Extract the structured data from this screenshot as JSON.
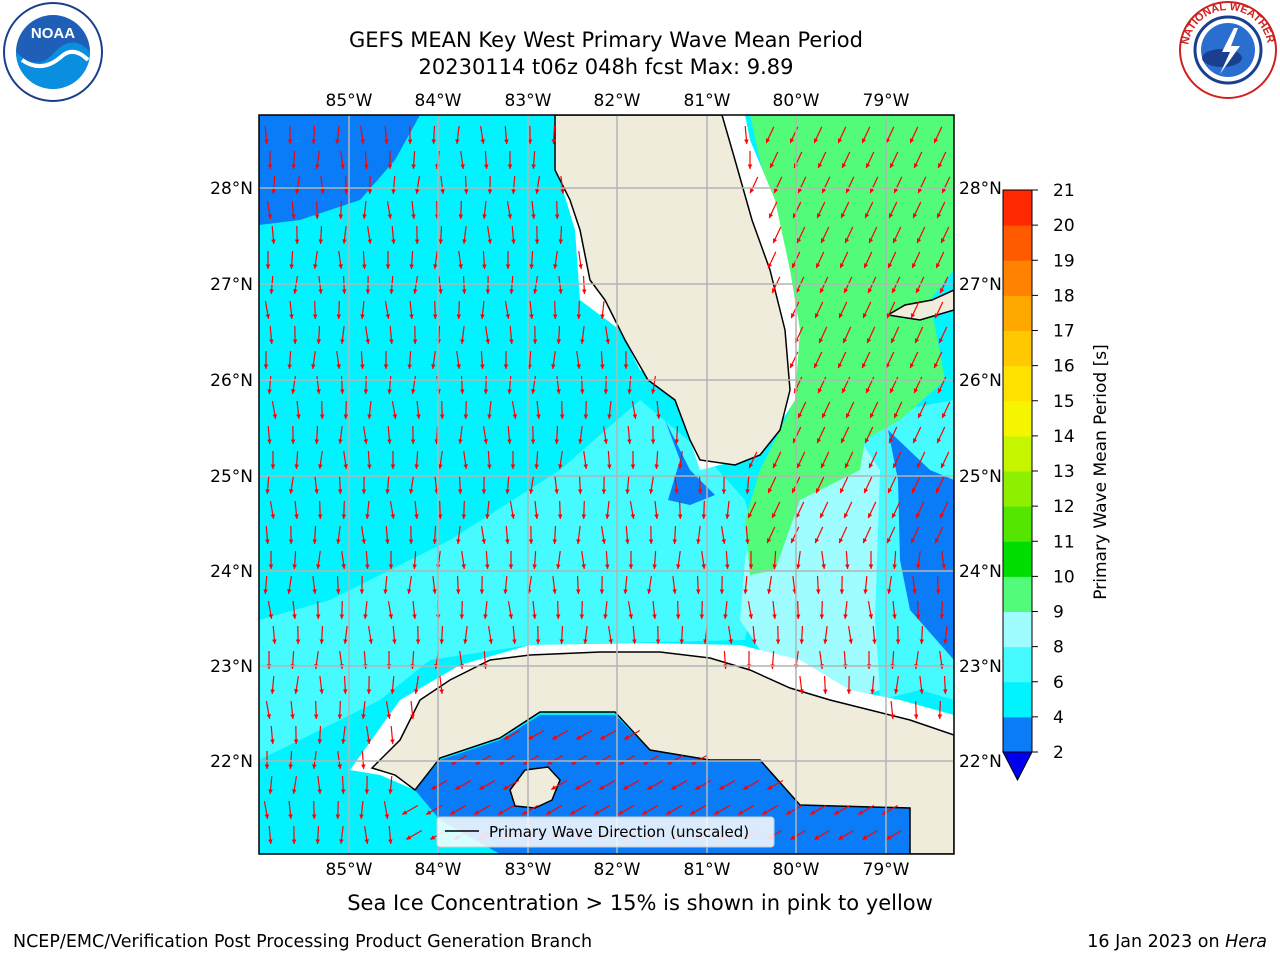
{
  "title_line1": "GEFS MEAN Key West Primary Wave Mean Period",
  "title_line2": "20230114 t06z 048h fcst   Max: 9.89",
  "map": {
    "lon_labels": [
      "85°W",
      "84°W",
      "83°W",
      "82°W",
      "81°W",
      "80°W",
      "79°W"
    ],
    "lat_labels": [
      "28°N",
      "27°N",
      "26°N",
      "25°N",
      "24°N",
      "23°N",
      "22°N"
    ],
    "legend_label": "Primary Wave Direction (unscaled)",
    "colors": {
      "land": "#efecdc",
      "band_2_4": "#0a7cf7",
      "band_4_6": "#00f3ff",
      "band_6_8": "#45fbff",
      "band_8_9": "#9ffcff",
      "band_9_10": "#52fb7a",
      "arrow": "#ff0000",
      "grid": "#b4b4b4"
    }
  },
  "colorbar": {
    "label": "Primary Wave Mean Period [s]",
    "ticks": [
      "2",
      "4",
      "6",
      "8",
      "9",
      "10",
      "11",
      "12",
      "13",
      "14",
      "15",
      "16",
      "17",
      "18",
      "19",
      "20",
      "21"
    ],
    "colors": [
      "#0a7cf7",
      "#00f3ff",
      "#45fbff",
      "#9ffcff",
      "#52fb7a",
      "#00dd00",
      "#55e600",
      "#8ef000",
      "#c5f600",
      "#f5f500",
      "#ffe200",
      "#ffc800",
      "#ffa800",
      "#ff8200",
      "#ff5a00",
      "#ff2800"
    ],
    "extend_color": "#0000ee"
  },
  "caption": "Sea Ice Concentration > 15% is shown in pink to yellow",
  "footer_left": "NCEP/EMC/Verification Post Processing Product Generation Branch",
  "footer_right_date": "16 Jan 2023 on ",
  "footer_right_host": "Hera",
  "logos": {
    "noaa_text": "NOAA",
    "nws_text": "NATIONAL WEATHER SERVICE"
  }
}
